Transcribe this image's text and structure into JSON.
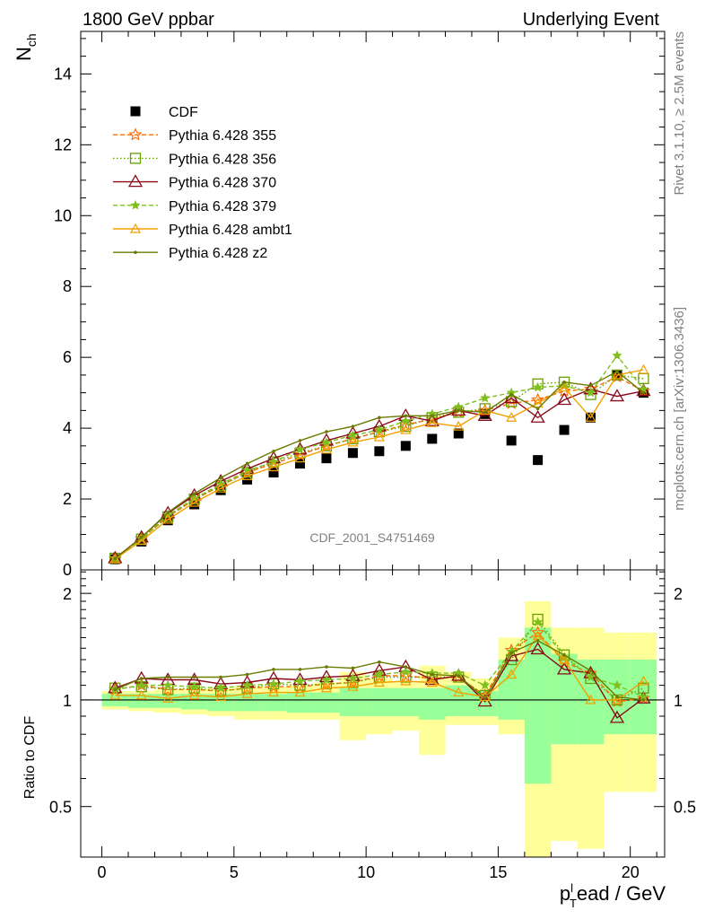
{
  "header": {
    "left_title": "1800 GeV ppbar",
    "right_title": "Underlying Event"
  },
  "side_labels": {
    "rivet": "Rivet 3.1.10, ≥ 2.5M events",
    "mcplots": "mcplots.cern.ch [arXiv:1306.3436]"
  },
  "watermark": "CDF_2001_S4751469",
  "colors": {
    "cdf": "#000000",
    "p355": "#ff6a00",
    "p356": "#66a000",
    "p370": "#8b0a1a",
    "p379": "#7fbf1e",
    "ambt1": "#f0a000",
    "z2": "#6b7a00",
    "band_inner": "#99ff99",
    "band_outer": "#ffff99"
  },
  "chart_data": [
    {
      "type": "scatter",
      "panel": "main",
      "ylabel": "N",
      "ylabel_sub": "ch",
      "xlim": [
        -0.8,
        21.3
      ],
      "ylim": [
        0,
        15.2
      ],
      "y_ticks": [
        0,
        2,
        4,
        6,
        8,
        10,
        12,
        14
      ],
      "legend_position": "top-left",
      "x": [
        0.5,
        1.5,
        2.5,
        3.5,
        4.5,
        5.5,
        6.5,
        7.5,
        8.5,
        9.5,
        10.5,
        11.5,
        12.5,
        13.5,
        14.5,
        15.5,
        16.5,
        17.5,
        18.5,
        19.5,
        20.5
      ],
      "series": [
        {
          "name": "CDF",
          "key": "cdf",
          "marker": "square",
          "style": "none",
          "values": [
            0.3,
            0.8,
            1.4,
            1.85,
            2.25,
            2.55,
            2.75,
            3.0,
            3.15,
            3.3,
            3.35,
            3.5,
            3.7,
            3.85,
            4.4,
            3.65,
            3.1,
            3.95,
            4.3,
            5.5,
            5.0
          ]
        },
        {
          "name": "Pythia 6.428 355",
          "key": "p355",
          "marker": "star",
          "style": "dashed",
          "values": [
            0.32,
            0.88,
            1.5,
            1.98,
            2.38,
            2.75,
            3.0,
            3.25,
            3.5,
            3.7,
            3.9,
            4.1,
            4.25,
            4.45,
            4.5,
            4.7,
            4.8,
            5.05,
            5.1,
            5.45,
            5.05
          ]
        },
        {
          "name": "Pythia 6.428 356",
          "key": "p356",
          "marker": "open-square",
          "style": "dotted",
          "values": [
            0.33,
            0.87,
            1.5,
            2.0,
            2.38,
            2.75,
            3.05,
            3.3,
            3.5,
            3.7,
            3.9,
            4.05,
            4.3,
            4.45,
            4.55,
            4.75,
            5.25,
            5.3,
            4.95,
            5.5,
            5.4
          ]
        },
        {
          "name": "Pythia 6.428 370",
          "key": "p370",
          "marker": "open-triangle",
          "style": "solid",
          "values": [
            0.33,
            0.92,
            1.6,
            2.1,
            2.5,
            2.85,
            3.15,
            3.4,
            3.65,
            3.85,
            4.05,
            4.35,
            4.2,
            4.5,
            4.35,
            4.85,
            4.3,
            4.8,
            5.1,
            4.9,
            5.05
          ]
        },
        {
          "name": "Pythia 6.428 379",
          "key": "p379",
          "marker": "small-star",
          "style": "dashed",
          "values": [
            0.33,
            0.88,
            1.55,
            2.02,
            2.42,
            2.8,
            3.05,
            3.4,
            3.6,
            3.8,
            3.95,
            4.2,
            4.4,
            4.6,
            4.85,
            5.0,
            5.15,
            5.2,
            5.0,
            6.05,
            5.1
          ]
        },
        {
          "name": "Pythia 6.428 ambt1",
          "key": "ambt1",
          "marker": "small-triangle",
          "style": "solid",
          "values": [
            0.31,
            0.82,
            1.42,
            1.9,
            2.3,
            2.65,
            2.9,
            3.15,
            3.4,
            3.6,
            3.75,
            3.95,
            4.15,
            4.05,
            4.5,
            4.3,
            4.7,
            5.15,
            4.3,
            5.5,
            5.65
          ]
        },
        {
          "name": "Pythia 6.428 z2",
          "key": "z2",
          "marker": "dot",
          "style": "solid",
          "values": [
            0.32,
            0.92,
            1.62,
            2.15,
            2.6,
            3.0,
            3.35,
            3.65,
            3.9,
            4.05,
            4.3,
            4.35,
            4.35,
            4.5,
            4.45,
            4.95,
            4.55,
            5.3,
            5.2,
            5.6,
            5.0
          ]
        }
      ]
    },
    {
      "type": "scatter",
      "panel": "ratio",
      "xlabel_prefix": "p",
      "xlabel_sub": "T",
      "xlabel_sup": "l",
      "xlabel_suffix": "ead / GeV",
      "ylabel": "Ratio to CDF",
      "xlim": [
        -0.8,
        21.3
      ],
      "ylim": [
        0.36,
        2.33
      ],
      "y_ticks": [
        0.5,
        1,
        2
      ],
      "y_tick_labels": [
        "0.5",
        "1",
        "2"
      ],
      "x_ticks": [
        0,
        5,
        10,
        15,
        20
      ],
      "x_tick_labels": [
        "0",
        "5",
        "10",
        "15",
        "20"
      ],
      "bins": [
        [
          0,
          1
        ],
        [
          1,
          2
        ],
        [
          2,
          3
        ],
        [
          3,
          4
        ],
        [
          4,
          5
        ],
        [
          5,
          6
        ],
        [
          6,
          7
        ],
        [
          7,
          8
        ],
        [
          8,
          9
        ],
        [
          9,
          10
        ],
        [
          10,
          11
        ],
        [
          11,
          12
        ],
        [
          12,
          13
        ],
        [
          13,
          14
        ],
        [
          14,
          15
        ],
        [
          15,
          16
        ],
        [
          16,
          17
        ],
        [
          17,
          18
        ],
        [
          18,
          19
        ],
        [
          19,
          20
        ],
        [
          20,
          21
        ]
      ],
      "band_inner": [
        [
          0.96,
          1.04
        ],
        [
          0.95,
          1.04
        ],
        [
          0.95,
          1.04
        ],
        [
          0.94,
          1.04
        ],
        [
          0.93,
          1.04
        ],
        [
          0.93,
          1.04
        ],
        [
          0.93,
          1.04
        ],
        [
          0.92,
          1.05
        ],
        [
          0.92,
          1.05
        ],
        [
          0.9,
          1.08
        ],
        [
          0.9,
          1.08
        ],
        [
          0.9,
          1.08
        ],
        [
          0.88,
          1.08
        ],
        [
          0.9,
          1.1
        ],
        [
          0.9,
          1.06
        ],
        [
          0.88,
          1.3
        ],
        [
          0.58,
          1.6
        ],
        [
          0.75,
          1.35
        ],
        [
          0.75,
          1.3
        ],
        [
          0.8,
          1.3
        ],
        [
          0.8,
          1.3
        ]
      ],
      "band_outer": [
        [
          0.94,
          1.06
        ],
        [
          0.93,
          1.06
        ],
        [
          0.92,
          1.07
        ],
        [
          0.91,
          1.07
        ],
        [
          0.9,
          1.08
        ],
        [
          0.88,
          1.09
        ],
        [
          0.88,
          1.09
        ],
        [
          0.88,
          1.1
        ],
        [
          0.88,
          1.12
        ],
        [
          0.77,
          1.2
        ],
        [
          0.8,
          1.15
        ],
        [
          0.82,
          1.12
        ],
        [
          0.7,
          1.25
        ],
        [
          0.85,
          1.2
        ],
        [
          0.85,
          1.15
        ],
        [
          0.8,
          1.5
        ],
        [
          0.34,
          1.9
        ],
        [
          0.4,
          1.6
        ],
        [
          0.38,
          1.6
        ],
        [
          0.55,
          1.55
        ],
        [
          0.55,
          1.55
        ]
      ],
      "x": [
        0.5,
        1.5,
        2.5,
        3.5,
        4.5,
        5.5,
        6.5,
        7.5,
        8.5,
        9.5,
        10.5,
        11.5,
        12.5,
        13.5,
        14.5,
        15.5,
        16.5,
        17.5,
        18.5,
        19.5,
        20.5
      ],
      "series": [
        {
          "key": "p355",
          "values": [
            1.07,
            1.1,
            1.07,
            1.07,
            1.06,
            1.08,
            1.09,
            1.09,
            1.11,
            1.12,
            1.17,
            1.17,
            1.15,
            1.16,
            1.03,
            1.38,
            1.55,
            1.28,
            1.19,
            0.99,
            1.01
          ]
        },
        {
          "key": "p356",
          "values": [
            1.08,
            1.09,
            1.07,
            1.08,
            1.06,
            1.08,
            1.11,
            1.1,
            1.11,
            1.12,
            1.16,
            1.16,
            1.16,
            1.16,
            1.03,
            1.3,
            1.69,
            1.34,
            1.15,
            1.0,
            1.08
          ]
        },
        {
          "key": "p370",
          "values": [
            1.08,
            1.15,
            1.14,
            1.14,
            1.11,
            1.12,
            1.15,
            1.14,
            1.16,
            1.17,
            1.21,
            1.24,
            1.14,
            1.17,
            0.99,
            1.33,
            1.39,
            1.22,
            1.19,
            0.89,
            1.01
          ]
        },
        {
          "key": "p379",
          "values": [
            1.07,
            1.1,
            1.1,
            1.09,
            1.08,
            1.1,
            1.11,
            1.13,
            1.14,
            1.15,
            1.18,
            1.2,
            1.19,
            1.19,
            1.1,
            1.37,
            1.66,
            1.32,
            1.16,
            1.1,
            1.02
          ]
        },
        {
          "key": "ambt1",
          "values": [
            1.03,
            1.03,
            1.01,
            1.03,
            1.02,
            1.04,
            1.05,
            1.05,
            1.08,
            1.09,
            1.12,
            1.13,
            1.12,
            1.05,
            1.02,
            1.18,
            1.52,
            1.3,
            1.0,
            1.0,
            1.13
          ]
        },
        {
          "key": "z2",
          "values": [
            1.07,
            1.15,
            1.16,
            1.16,
            1.16,
            1.18,
            1.22,
            1.22,
            1.24,
            1.23,
            1.28,
            1.24,
            1.18,
            1.17,
            1.01,
            1.36,
            1.47,
            1.34,
            1.21,
            1.02,
            1.0
          ]
        }
      ]
    }
  ]
}
